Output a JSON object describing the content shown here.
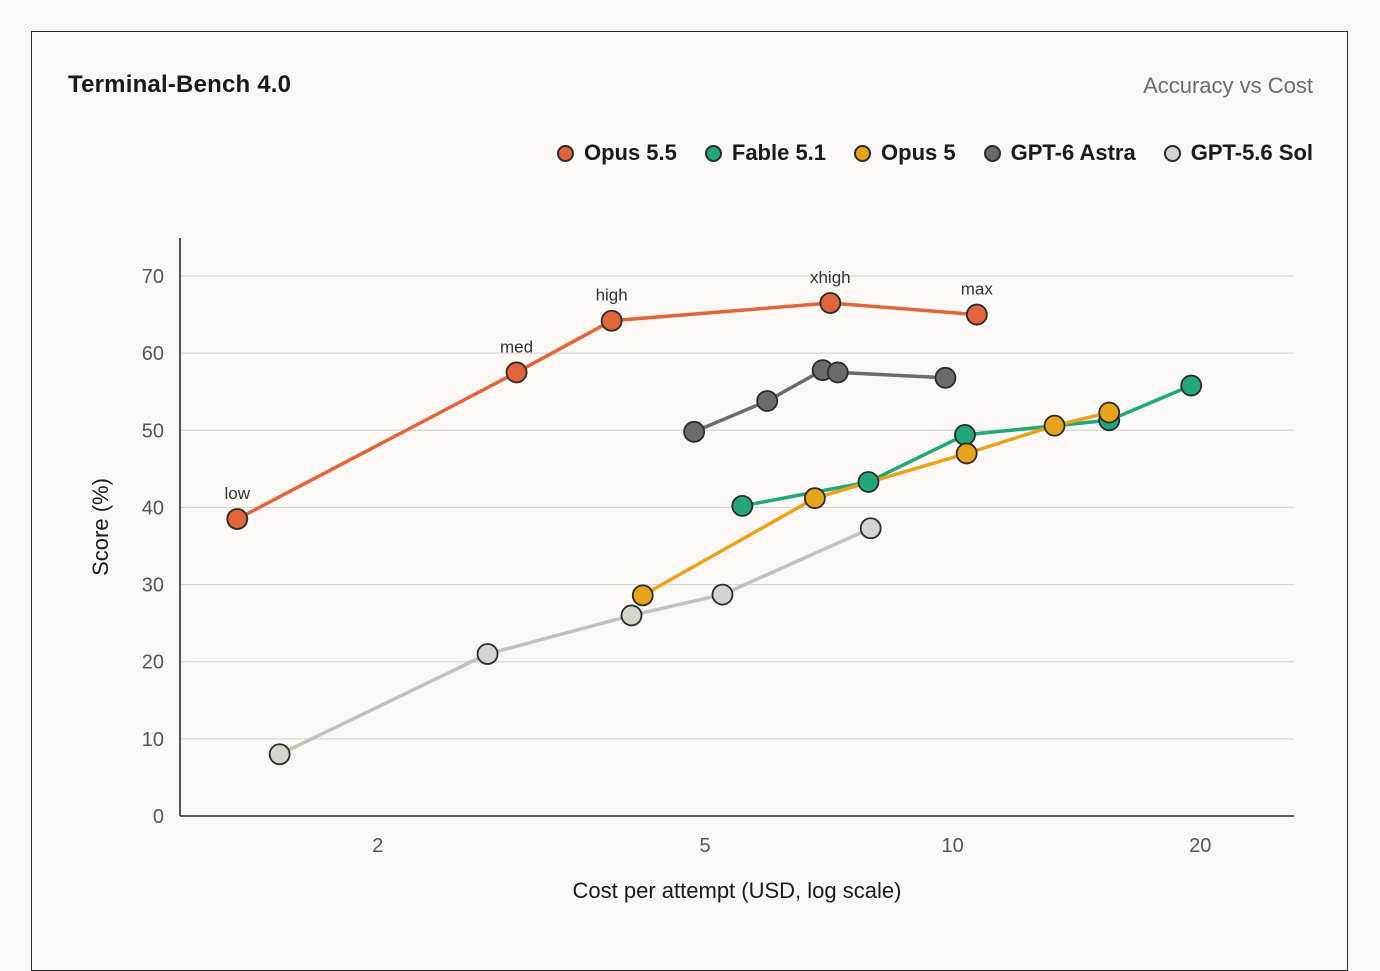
{
  "chart_data": {
    "type": "line",
    "title": "Terminal-Bench 4.0",
    "subtitle": "Accuracy vs Cost",
    "xlabel": "Cost per attempt (USD, log scale)",
    "ylabel": "Score (%)",
    "x_scale": "log",
    "xlim": [
      1.15,
      26
    ],
    "ylim": [
      0,
      75
    ],
    "x_ticks": [
      2,
      5,
      10,
      20
    ],
    "x_tick_labels": [
      "2",
      "5",
      "10",
      "20"
    ],
    "y_ticks": [
      0,
      10,
      20,
      30,
      40,
      50,
      60,
      70
    ],
    "y_tick_labels": [
      "0",
      "10",
      "20",
      "30",
      "40",
      "50",
      "60",
      "70"
    ],
    "grid": "horizontal",
    "legend_position": "top-right",
    "series": [
      {
        "name": "Opus 5.5",
        "color": "#e0643c",
        "points": [
          {
            "x": 1.35,
            "y": 38.5,
            "label": "low"
          },
          {
            "x": 2.95,
            "y": 57.5,
            "label": "med"
          },
          {
            "x": 3.85,
            "y": 64.2,
            "label": "high"
          },
          {
            "x": 7.1,
            "y": 66.5,
            "label": "xhigh"
          },
          {
            "x": 10.7,
            "y": 65.0,
            "label": "max"
          }
        ]
      },
      {
        "name": "Fable 5.1",
        "color": "#22a67a",
        "points": [
          {
            "x": 5.55,
            "y": 40.2
          },
          {
            "x": 7.9,
            "y": 43.3
          },
          {
            "x": 10.35,
            "y": 49.4
          },
          {
            "x": 15.5,
            "y": 51.3
          },
          {
            "x": 19.5,
            "y": 55.8
          }
        ]
      },
      {
        "name": "Opus 5",
        "color": "#e8a31c",
        "points": [
          {
            "x": 4.2,
            "y": 28.6
          },
          {
            "x": 6.8,
            "y": 41.2
          },
          {
            "x": 10.4,
            "y": 47.0
          },
          {
            "x": 13.3,
            "y": 50.6
          },
          {
            "x": 15.5,
            "y": 52.3
          }
        ]
      },
      {
        "name": "GPT-6 Astra",
        "color": "#6b6b6b",
        "points": [
          {
            "x": 4.85,
            "y": 49.8
          },
          {
            "x": 5.95,
            "y": 53.8
          },
          {
            "x": 6.95,
            "y": 57.8
          },
          {
            "x": 7.25,
            "y": 57.5
          },
          {
            "x": 9.8,
            "y": 56.8
          }
        ]
      },
      {
        "name": "GPT-5.6 Sol",
        "color": "#d6d4cc",
        "points": [
          {
            "x": 1.52,
            "y": 8.0
          },
          {
            "x": 2.72,
            "y": 21.0
          },
          {
            "x": 4.07,
            "y": 26.0
          },
          {
            "x": 5.25,
            "y": 28.7
          },
          {
            "x": 7.95,
            "y": 37.3
          }
        ]
      }
    ]
  }
}
